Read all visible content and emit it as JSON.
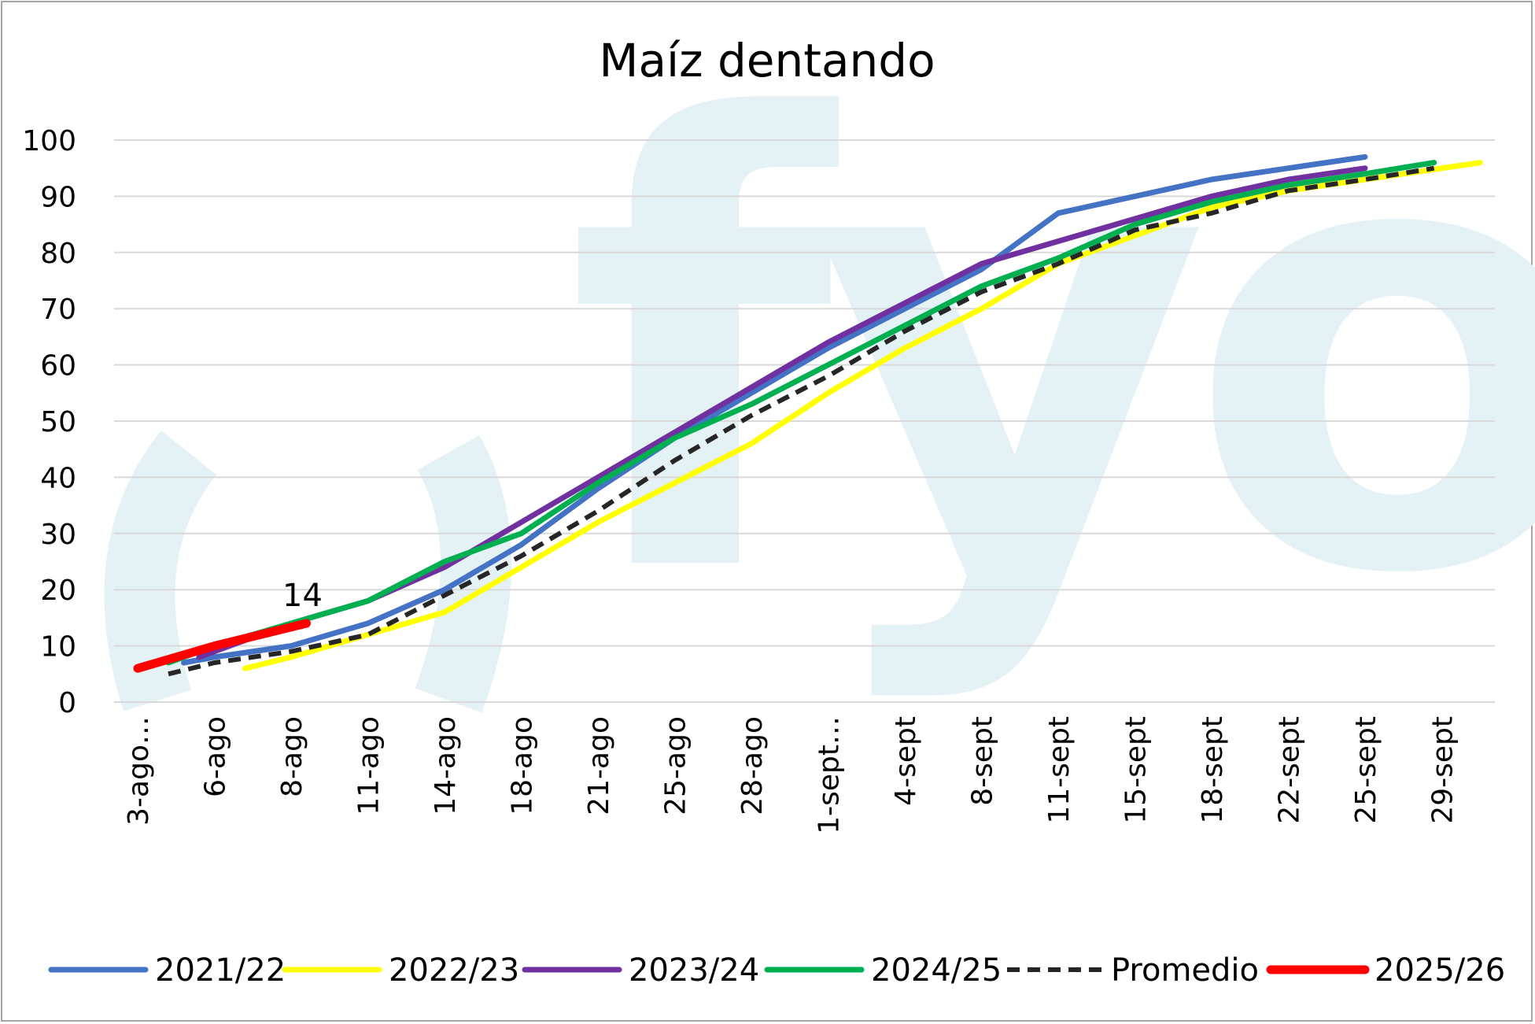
{
  "chart_data": {
    "type": "line",
    "title": "Maíz dentando",
    "xlabel": "",
    "ylabel": "",
    "ylim": [
      0,
      100
    ],
    "yticks": [
      0,
      10,
      20,
      30,
      40,
      50,
      60,
      70,
      80,
      90,
      100
    ],
    "grid": true,
    "legend": "bottom",
    "watermark_text": "fyo",
    "categories": [
      "3-ago…",
      "6-ago",
      "8-ago",
      "11-ago",
      "14-ago",
      "18-ago",
      "21-ago",
      "25-ago",
      "28-ago",
      "1-sept…",
      "4-sept",
      "8-sept",
      "11-sept",
      "15-sept",
      "18-sept",
      "22-sept",
      "25-sept",
      "29-sept"
    ],
    "series": [
      {
        "name": "2021/22",
        "color": "#4472c4",
        "dash": false,
        "points": [
          [
            0.6,
            7
          ],
          [
            1,
            8
          ],
          [
            2,
            10
          ],
          [
            3,
            14
          ],
          [
            4,
            20
          ],
          [
            5,
            28
          ],
          [
            6,
            38
          ],
          [
            7,
            47
          ],
          [
            8,
            55
          ],
          [
            9,
            63
          ],
          [
            10,
            70
          ],
          [
            11,
            77
          ],
          [
            12,
            87
          ],
          [
            13,
            90
          ],
          [
            14,
            93
          ],
          [
            15,
            95
          ],
          [
            16,
            97
          ]
        ]
      },
      {
        "name": "2022/23",
        "color": "#ffff00",
        "dash": false,
        "points": [
          [
            1.4,
            6
          ],
          [
            2,
            8
          ],
          [
            3,
            12
          ],
          [
            4,
            16
          ],
          [
            5,
            24
          ],
          [
            6,
            32
          ],
          [
            7,
            39
          ],
          [
            8,
            46
          ],
          [
            9,
            55
          ],
          [
            10,
            63
          ],
          [
            11,
            70
          ],
          [
            12,
            78
          ],
          [
            13,
            83
          ],
          [
            14,
            88
          ],
          [
            15,
            91
          ],
          [
            16,
            93
          ],
          [
            17.5,
            96
          ]
        ]
      },
      {
        "name": "2023/24",
        "color": "#7030a0",
        "dash": false,
        "points": [
          [
            0.8,
            8
          ],
          [
            1,
            9
          ],
          [
            2,
            14
          ],
          [
            3,
            18
          ],
          [
            4,
            24
          ],
          [
            5,
            32
          ],
          [
            6,
            40
          ],
          [
            7,
            48
          ],
          [
            8,
            56
          ],
          [
            9,
            64
          ],
          [
            10,
            71
          ],
          [
            11,
            78
          ],
          [
            12,
            82
          ],
          [
            13,
            86
          ],
          [
            14,
            90
          ],
          [
            15,
            93
          ],
          [
            16,
            95
          ]
        ]
      },
      {
        "name": "2024/25",
        "color": "#00b050",
        "dash": false,
        "points": [
          [
            0.4,
            7
          ],
          [
            1,
            10
          ],
          [
            2,
            14
          ],
          [
            3,
            18
          ],
          [
            4,
            25
          ],
          [
            5,
            30
          ],
          [
            6,
            39
          ],
          [
            7,
            47
          ],
          [
            8,
            53
          ],
          [
            9,
            60
          ],
          [
            10,
            67
          ],
          [
            11,
            74
          ],
          [
            12,
            79
          ],
          [
            13,
            85
          ],
          [
            14,
            89
          ],
          [
            15,
            92
          ],
          [
            16,
            94
          ],
          [
            16.9,
            96
          ]
        ]
      },
      {
        "name": "Promedio",
        "color": "#262626",
        "dash": true,
        "points": [
          [
            0.4,
            5
          ],
          [
            1,
            7
          ],
          [
            2,
            9
          ],
          [
            3,
            12
          ],
          [
            4,
            19
          ],
          [
            5,
            26
          ],
          [
            6,
            34
          ],
          [
            7,
            43
          ],
          [
            8,
            51
          ],
          [
            9,
            58
          ],
          [
            10,
            66
          ],
          [
            11,
            73
          ],
          [
            12,
            78
          ],
          [
            13,
            84
          ],
          [
            14,
            87
          ],
          [
            15,
            91
          ],
          [
            16,
            93
          ],
          [
            16.9,
            95
          ]
        ]
      },
      {
        "name": "2025/26",
        "color": "#ff0000",
        "dash": false,
        "points": [
          [
            0,
            6
          ],
          [
            1,
            10
          ],
          [
            2.2,
            14
          ]
        ]
      }
    ],
    "annotations": [
      {
        "text": "14",
        "x": 2.2,
        "y": 14
      }
    ]
  }
}
